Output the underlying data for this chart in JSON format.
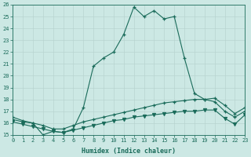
{
  "title": "",
  "xlabel": "Humidex (Indice chaleur)",
  "ylabel": "",
  "bg_color": "#cce8e4",
  "grid_color": "#b8d4d0",
  "line_color": "#1a6b5a",
  "x_min": 0,
  "x_max": 23,
  "y_min": 15,
  "y_max": 26,
  "series1_x": [
    0,
    1,
    2,
    3,
    4,
    5,
    6,
    7,
    8,
    9,
    10,
    11,
    12,
    13,
    14,
    15,
    16,
    17,
    18,
    19,
    20,
    21,
    22,
    23
  ],
  "series1_y": [
    16.5,
    16.2,
    16.0,
    15.0,
    15.3,
    15.2,
    15.5,
    17.3,
    20.8,
    21.5,
    22.0,
    23.5,
    25.8,
    25.0,
    25.5,
    24.8,
    25.0,
    21.5,
    18.5,
    18.0,
    17.8,
    17.0,
    16.5,
    17.0
  ],
  "series2_x": [
    0,
    1,
    2,
    3,
    4,
    5,
    6,
    7,
    8,
    9,
    10,
    11,
    12,
    13,
    14,
    15,
    16,
    17,
    18,
    19,
    20,
    21,
    22,
    23
  ],
  "series2_y": [
    16.3,
    16.1,
    16.0,
    15.8,
    15.5,
    15.5,
    15.8,
    16.1,
    16.3,
    16.5,
    16.7,
    16.9,
    17.1,
    17.3,
    17.5,
    17.7,
    17.8,
    17.9,
    18.0,
    18.0,
    18.1,
    17.5,
    16.8,
    17.3
  ],
  "series3_x": [
    0,
    1,
    2,
    3,
    4,
    5,
    6,
    7,
    8,
    9,
    10,
    11,
    12,
    13,
    14,
    15,
    16,
    17,
    18,
    19,
    20,
    21,
    22,
    23
  ],
  "series3_y": [
    16.1,
    15.9,
    15.7,
    15.5,
    15.3,
    15.2,
    15.4,
    15.6,
    15.8,
    16.0,
    16.2,
    16.3,
    16.5,
    16.6,
    16.7,
    16.8,
    16.9,
    17.0,
    17.0,
    17.1,
    17.1,
    16.4,
    15.9,
    16.7
  ],
  "yticks": [
    15,
    16,
    17,
    18,
    19,
    20,
    21,
    22,
    23,
    24,
    25,
    26
  ],
  "xticks": [
    0,
    1,
    2,
    3,
    4,
    5,
    6,
    7,
    8,
    9,
    10,
    11,
    12,
    13,
    14,
    15,
    16,
    17,
    18,
    19,
    20,
    21,
    22,
    23
  ]
}
